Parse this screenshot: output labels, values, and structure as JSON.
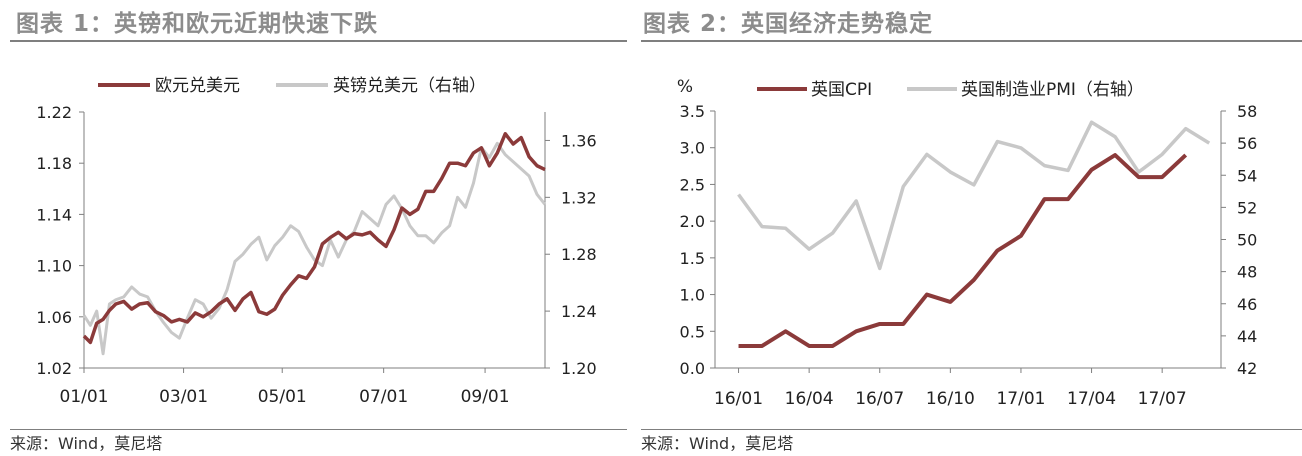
{
  "figures": [
    {
      "title": "图表 1：英镑和欧元近期快速下跌",
      "source": "来源：Wind，莫尼塔"
    },
    {
      "title": "图表 2：英国经济走势稳定",
      "source": "来源：Wind，莫尼塔"
    }
  ],
  "chart_data": [
    {
      "type": "line",
      "title": "图表 1：英镑和欧元近期快速下跌",
      "xlabel": "",
      "ylabel": "",
      "y2label": "",
      "x_tick_labels": [
        "01/01",
        "03/01",
        "05/01",
        "07/01",
        "09/01"
      ],
      "ylim": [
        1.02,
        1.22
      ],
      "y_ticks": [
        "1.02",
        "1.06",
        "1.10",
        "1.14",
        "1.18",
        "1.22"
      ],
      "y2lim": [
        1.2,
        1.38
      ],
      "y2_ticks": [
        "1.20",
        "1.24",
        "1.28",
        "1.32",
        "1.36"
      ],
      "legend": "top",
      "grid": false,
      "colors": {
        "eurusd": "#8b3a3a",
        "gbpusd": "#c8c8c8"
      },
      "series": [
        {
          "name": "欧元兑美元",
          "axis": "left",
          "x": [
            0,
            4,
            8,
            12,
            16,
            20,
            25,
            30,
            35,
            40,
            45,
            50,
            55,
            60,
            65,
            70,
            75,
            80,
            85,
            90,
            95,
            100,
            105,
            110,
            115,
            120,
            125,
            130,
            135,
            140,
            145,
            150,
            155,
            160,
            165,
            170,
            175,
            180,
            185,
            190,
            195,
            200,
            205,
            210,
            215,
            220,
            225,
            230,
            235,
            240,
            245,
            250,
            255,
            260,
            265,
            270,
            275,
            280,
            285,
            290
          ],
          "values": [
            1.045,
            1.04,
            1.055,
            1.058,
            1.065,
            1.07,
            1.072,
            1.066,
            1.07,
            1.071,
            1.064,
            1.061,
            1.056,
            1.058,
            1.056,
            1.063,
            1.06,
            1.064,
            1.07,
            1.074,
            1.065,
            1.074,
            1.079,
            1.064,
            1.062,
            1.066,
            1.077,
            1.085,
            1.092,
            1.09,
            1.099,
            1.117,
            1.122,
            1.126,
            1.121,
            1.125,
            1.124,
            1.126,
            1.12,
            1.115,
            1.128,
            1.145,
            1.14,
            1.144,
            1.158,
            1.158,
            1.168,
            1.18,
            1.18,
            1.178,
            1.188,
            1.192,
            1.178,
            1.188,
            1.203,
            1.195,
            1.2,
            1.185,
            1.178,
            1.175
          ]
        },
        {
          "name": "英镑兑美元（右轴）",
          "axis": "right",
          "x": [
            0,
            4,
            8,
            12,
            16,
            20,
            25,
            30,
            35,
            40,
            45,
            50,
            55,
            60,
            65,
            70,
            75,
            80,
            85,
            90,
            95,
            100,
            105,
            110,
            115,
            120,
            125,
            130,
            135,
            140,
            145,
            150,
            155,
            160,
            165,
            170,
            175,
            180,
            185,
            190,
            195,
            200,
            205,
            210,
            215,
            220,
            225,
            230,
            235,
            240,
            245,
            250,
            255,
            260,
            265,
            270,
            275,
            280,
            285,
            290
          ],
          "values": [
            1.237,
            1.23,
            1.24,
            1.21,
            1.245,
            1.248,
            1.25,
            1.257,
            1.252,
            1.25,
            1.24,
            1.232,
            1.225,
            1.221,
            1.235,
            1.248,
            1.245,
            1.235,
            1.242,
            1.255,
            1.275,
            1.28,
            1.287,
            1.292,
            1.276,
            1.286,
            1.292,
            1.3,
            1.296,
            1.285,
            1.276,
            1.272,
            1.29,
            1.278,
            1.29,
            1.296,
            1.31,
            1.305,
            1.3,
            1.315,
            1.321,
            1.312,
            1.3,
            1.293,
            1.293,
            1.288,
            1.295,
            1.3,
            1.32,
            1.313,
            1.33,
            1.355,
            1.348,
            1.358,
            1.35,
            1.345,
            1.34,
            1.335,
            1.322,
            1.315
          ]
        }
      ]
    },
    {
      "type": "line",
      "title": "图表 2：英国经济走势稳定",
      "xlabel": "",
      "ylabel": "%",
      "y2label": "",
      "x_tick_labels": [
        "16/01",
        "16/04",
        "16/07",
        "16/10",
        "17/01",
        "17/04",
        "17/07"
      ],
      "x": [
        "16/01",
        "16/02",
        "16/03",
        "16/04",
        "16/05",
        "16/06",
        "16/07",
        "16/08",
        "16/09",
        "16/10",
        "16/11",
        "16/12",
        "17/01",
        "17/02",
        "17/03",
        "17/04",
        "17/05",
        "17/06",
        "17/07",
        "17/08",
        "17/09"
      ],
      "ylim": [
        0,
        3.5
      ],
      "y_ticks": [
        "0.0",
        "0.5",
        "1.0",
        "1.5",
        "2.0",
        "2.5",
        "3.0",
        "3.5"
      ],
      "y2lim": [
        42,
        58
      ],
      "y2_ticks": [
        "42",
        "44",
        "46",
        "48",
        "50",
        "52",
        "54",
        "56",
        "58"
      ],
      "legend": "top",
      "grid": false,
      "colors": {
        "cpi": "#8b3a3a",
        "pmi": "#c8c8c8"
      },
      "series": [
        {
          "name": "英国CPI",
          "axis": "left",
          "values": [
            0.3,
            0.3,
            0.5,
            0.3,
            0.3,
            0.5,
            0.6,
            0.6,
            1.0,
            0.9,
            1.2,
            1.6,
            1.8,
            2.3,
            2.3,
            2.7,
            2.9,
            2.6,
            2.6,
            2.9,
            null
          ]
        },
        {
          "name": "英国制造业PMI（右轴）",
          "axis": "right",
          "values": [
            52.8,
            50.8,
            50.7,
            49.4,
            50.4,
            52.4,
            48.2,
            53.3,
            55.3,
            54.2,
            53.4,
            56.1,
            55.7,
            54.6,
            54.3,
            57.3,
            56.4,
            54.2,
            55.3,
            56.9,
            56.0
          ]
        }
      ]
    }
  ]
}
